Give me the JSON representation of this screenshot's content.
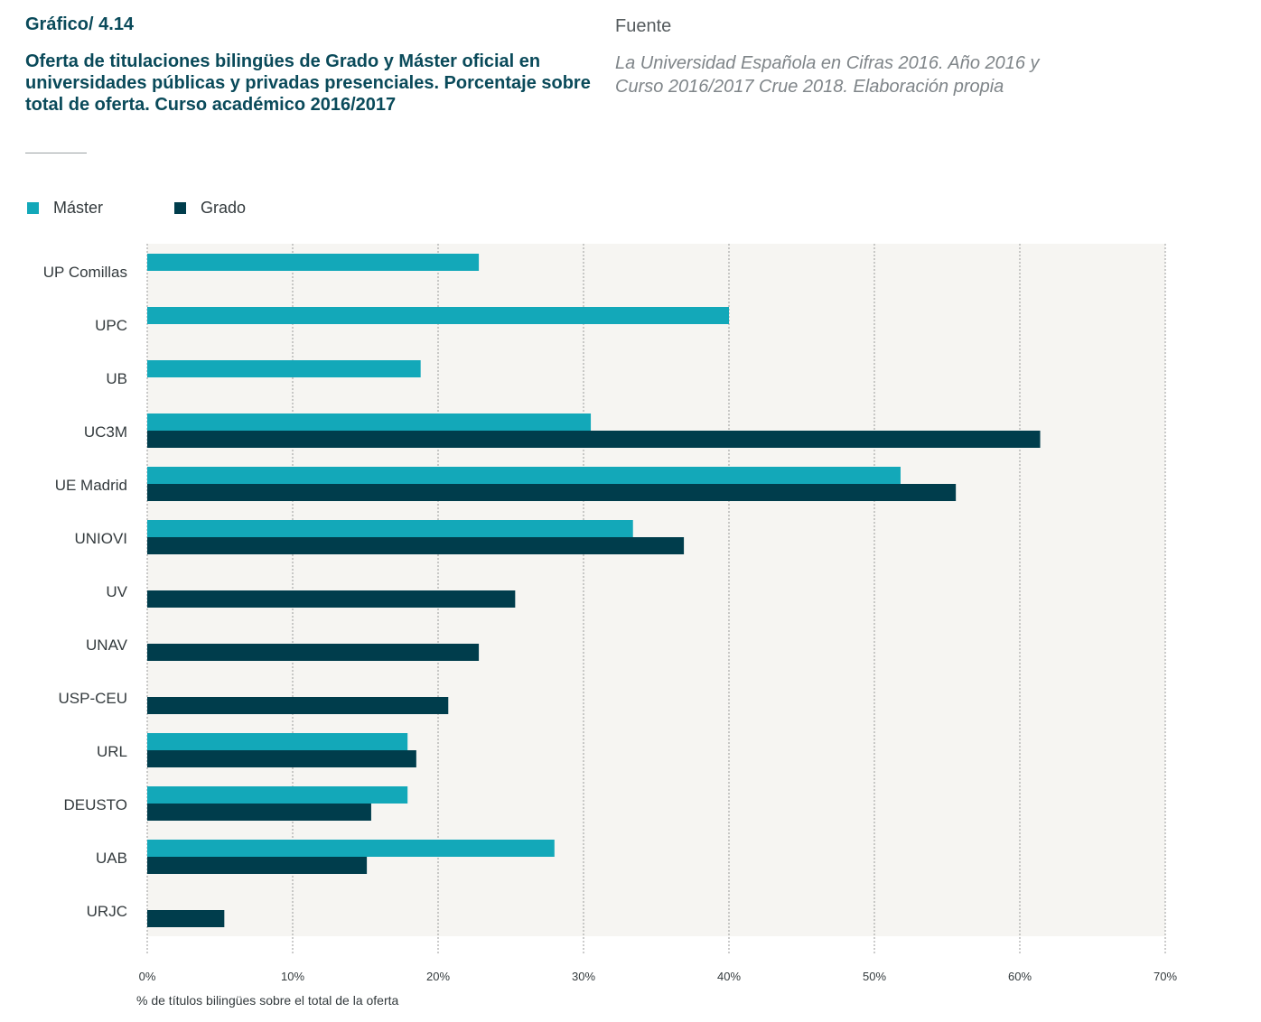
{
  "header": {
    "figure_number": "Gráfico/ 4.14",
    "title": "Oferta de titulaciones bilingües de Grado y Máster oficial en universidades públicas y privadas presenciales. Porcentaje sobre total de oferta. Curso académico 2016/2017",
    "source_label": "Fuente",
    "source_text": "La Universidad Española en Cifras 2016. Año 2016 y Curso  2016/2017 Crue 2018. Elaboración propia"
  },
  "legend": [
    {
      "name": "Máster",
      "color": "#13a8b9"
    },
    {
      "name": "Grado",
      "color": "#003d4c"
    }
  ],
  "colors": {
    "master": "#13a8b9",
    "grado": "#003d4c",
    "plot_background": "#f6f5f2",
    "gridline": "#9a9a9a"
  },
  "chart_data": {
    "type": "bar",
    "orientation": "horizontal",
    "categories": [
      "UP Comillas",
      "UPC",
      "UB",
      "UC3M",
      "UE Madrid",
      "UNIOVI",
      "UV",
      "UNAV",
      "USP-CEU",
      "URL",
      "DEUSTO",
      "UAB",
      "URJC"
    ],
    "series": [
      {
        "name": "Máster",
        "values": [
          22.8,
          40.0,
          18.8,
          30.5,
          51.8,
          33.4,
          null,
          null,
          null,
          17.9,
          17.9,
          28.0,
          null
        ]
      },
      {
        "name": "Grado",
        "values": [
          null,
          null,
          null,
          61.4,
          55.6,
          36.9,
          25.3,
          22.8,
          20.7,
          18.5,
          15.4,
          15.1,
          5.3
        ]
      }
    ],
    "xlim": [
      0,
      70
    ],
    "xticks": [
      "0%",
      "10%",
      "20%",
      "30%",
      "40%",
      "50%",
      "60%",
      "70%"
    ],
    "xlabel": "% de títulos bilingües sobre el total de la oferta",
    "ylabel": "",
    "grid": true,
    "legend_position": "top-left"
  }
}
